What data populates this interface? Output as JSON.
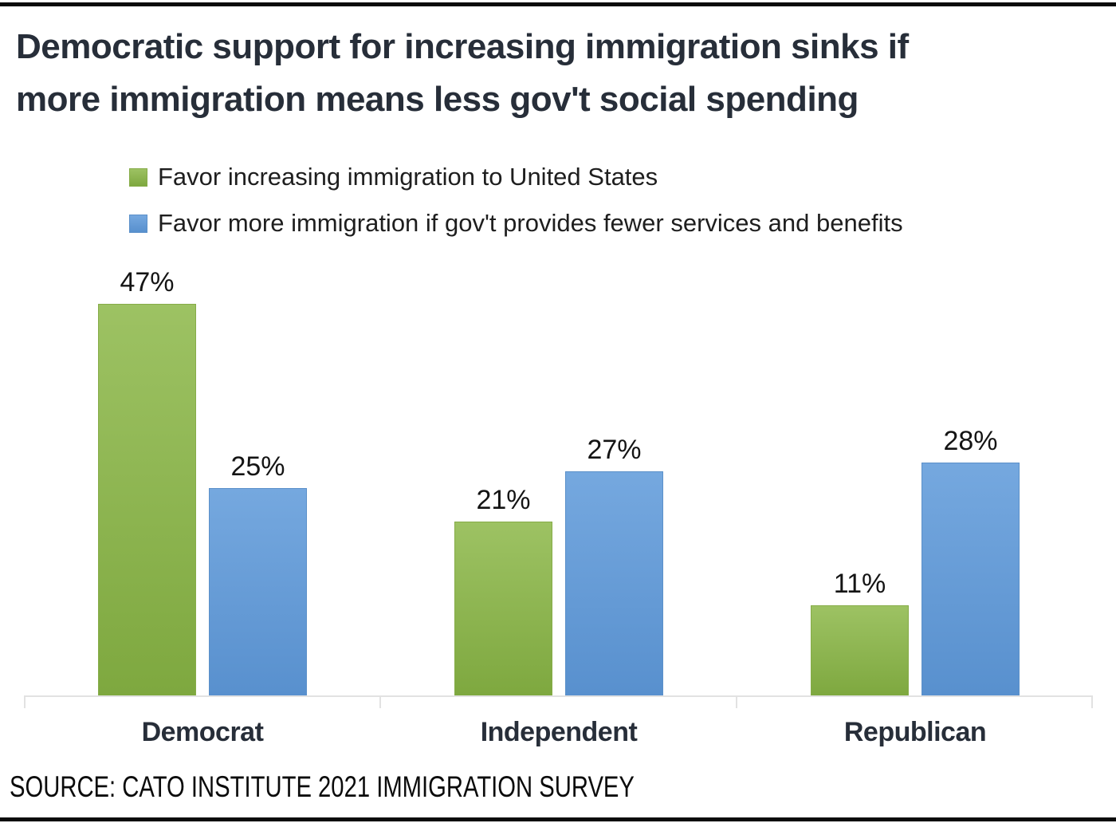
{
  "title": {
    "line1": "Democratic support for increasing immigration sinks if",
    "line2": "more immigration means less gov't social spending"
  },
  "legend": {
    "items": [
      {
        "label": "Favor increasing immigration to United States",
        "swatch_color": "#94BC58"
      },
      {
        "label": "Favor more immigration if gov't provides fewer services and benefits",
        "swatch_color": "#6FA3DB"
      }
    ]
  },
  "source_line": "SOURCE: CATO INSTITUTE 2021 IMMIGRATION SURVEY",
  "colors": {
    "background": "#FFFFFF",
    "rule": "#0B0B0B",
    "title_text": "#272E39",
    "value_label_text": "#141414",
    "axis_line": "#E2E2E2",
    "green_top": "#9DC263",
    "green_bottom": "#7EA83F",
    "green_border": "#86AC48",
    "blue_top": "#75A8DF",
    "blue_bottom": "#5890CE",
    "blue_border": "#5B90C9"
  },
  "chart_data": {
    "type": "bar",
    "title": "Democratic support for increasing immigration sinks if more immigration means less gov't social spending",
    "categories": [
      "Democrat",
      "Independent",
      "Republican"
    ],
    "series": [
      {
        "name": "Favor increasing immigration to United States",
        "color": "#94BC58",
        "values": [
          47,
          21,
          11
        ]
      },
      {
        "name": "Favor more immigration if gov't provides fewer services and benefits",
        "color": "#6FA3DB",
        "values": [
          25,
          27,
          28
        ]
      }
    ],
    "unit": "%",
    "ylim": [
      0,
      50
    ],
    "grid": false,
    "y_axis_shown": false,
    "legend_position": "top-left",
    "source": "SOURCE: CATO INSTITUTE 2021 IMMIGRATION SURVEY",
    "groups": [
      {
        "category": "Democrat",
        "green": {
          "value": 47,
          "label": "47%"
        },
        "blue": {
          "value": 25,
          "label": "25%"
        }
      },
      {
        "category": "Independent",
        "green": {
          "value": 21,
          "label": "21%"
        },
        "blue": {
          "value": 27,
          "label": "27%"
        }
      },
      {
        "category": "Republican",
        "green": {
          "value": 11,
          "label": "11%"
        },
        "blue": {
          "value": 28,
          "label": "28%"
        }
      }
    ]
  }
}
